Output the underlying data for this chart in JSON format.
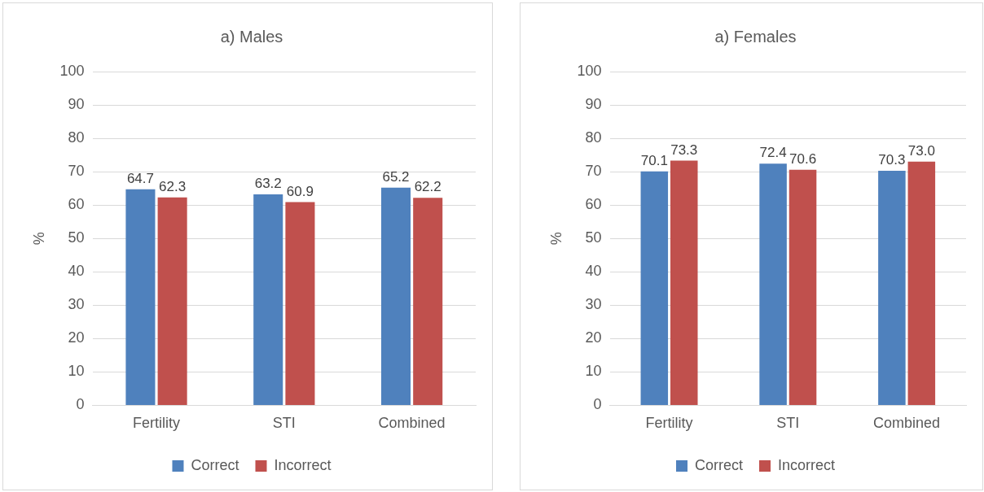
{
  "chart_data": [
    {
      "type": "bar",
      "title": "a) Males",
      "ylabel": "%",
      "categories": [
        "Fertility",
        "STI",
        "Combined"
      ],
      "series": [
        {
          "name": "Correct",
          "color": "#4f81bd",
          "values": [
            64.7,
            63.2,
            65.2
          ],
          "value_labels": [
            "64.7",
            "63.2",
            "65.2"
          ]
        },
        {
          "name": "Incorrect",
          "color": "#c0504d",
          "values": [
            62.3,
            60.9,
            62.2
          ],
          "value_labels": [
            "62.3",
            "60.9",
            "62.2"
          ]
        }
      ],
      "ylim": [
        0,
        100
      ],
      "yticks": [
        0,
        10,
        20,
        30,
        40,
        50,
        60,
        70,
        80,
        90,
        100
      ],
      "grid": "y",
      "legend": "bottom"
    },
    {
      "type": "bar",
      "title": "a) Females",
      "ylabel": "%",
      "categories": [
        "Fertility",
        "STI",
        "Combined"
      ],
      "series": [
        {
          "name": "Correct",
          "color": "#4f81bd",
          "values": [
            70.1,
            72.4,
            70.3
          ],
          "value_labels": [
            "70.1",
            "72.4",
            "70.3"
          ]
        },
        {
          "name": "Incorrect",
          "color": "#c0504d",
          "values": [
            73.3,
            70.6,
            73.0
          ],
          "value_labels": [
            "73.3",
            "70.6",
            "73.0"
          ]
        }
      ],
      "ylim": [
        0,
        100
      ],
      "yticks": [
        0,
        10,
        20,
        30,
        40,
        50,
        60,
        70,
        80,
        90,
        100
      ],
      "grid": "y",
      "legend": "bottom"
    }
  ]
}
